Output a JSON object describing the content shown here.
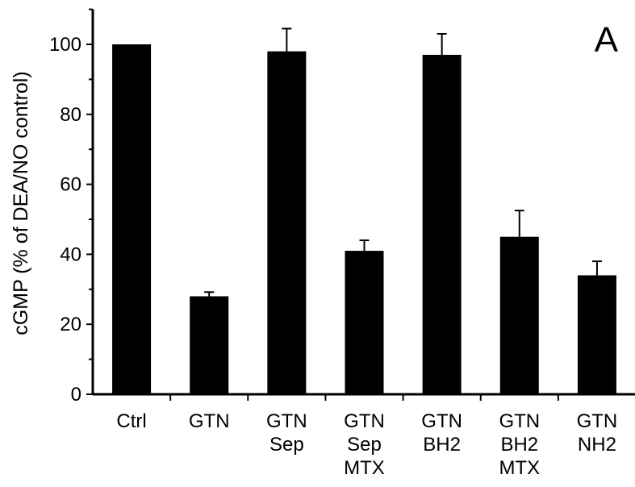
{
  "chart_data": {
    "type": "bar",
    "panel_label": "A",
    "ylabel": "cGMP (% of DEA/NO control)",
    "xlabel": "",
    "ylim": [
      0,
      110
    ],
    "yticks": [
      0,
      20,
      40,
      60,
      80,
      100
    ],
    "grid": false,
    "categories": [
      [
        "Ctrl"
      ],
      [
        "GTN"
      ],
      [
        "GTN",
        "Sep"
      ],
      [
        "GTN",
        "Sep",
        "MTX"
      ],
      [
        "GTN",
        "BH2"
      ],
      [
        "GTN",
        "BH2",
        "MTX"
      ],
      [
        "GTN",
        "NH2"
      ]
    ],
    "values": [
      100,
      28,
      98,
      41,
      97,
      45,
      34
    ],
    "errors": [
      0,
      1.2,
      6.5,
      3,
      6,
      7.5,
      4
    ],
    "bar_color": "#000000"
  }
}
